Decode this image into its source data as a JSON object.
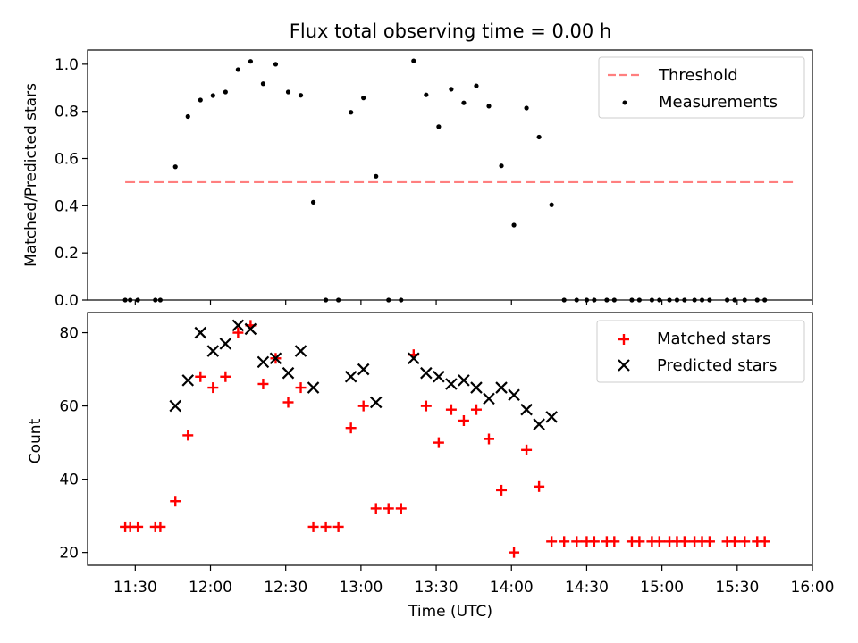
{
  "colors": {
    "threshold": "#ff7f7f",
    "measurement": "#000000",
    "matched": "#ff0000",
    "predicted": "#000000",
    "axes": "#000000"
  },
  "chart_data": [
    {
      "type": "scatter",
      "title": "Flux total observing time = 0.00 h",
      "xlabel": "",
      "ylabel": "Matched/Predicted stars",
      "ylim": [
        0,
        1.06
      ],
      "yticks": [
        0.0,
        0.2,
        0.4,
        0.6,
        0.8,
        1.0
      ],
      "ytick_labels": [
        "0.0",
        "0.2",
        "0.4",
        "0.6",
        "0.8",
        "1.0"
      ],
      "legend": {
        "placement": "top-right",
        "entries": [
          "Threshold",
          "Measurements"
        ]
      },
      "threshold": {
        "name": "Threshold",
        "y": 0.5,
        "x_range": [
          "11:26",
          "15:53"
        ],
        "style": "dashed"
      },
      "series": [
        {
          "name": "Measurements",
          "x": [
            "11:26",
            "11:28",
            "11:31",
            "11:38",
            "11:40",
            "11:46",
            "11:51",
            "11:56",
            "12:01",
            "12:06",
            "12:11",
            "12:16",
            "12:21",
            "12:26",
            "12:31",
            "12:36",
            "12:41",
            "12:46",
            "12:51",
            "12:56",
            "13:01",
            "13:06",
            "13:11",
            "13:16",
            "13:21",
            "13:26",
            "13:31",
            "13:36",
            "13:41",
            "13:46",
            "13:51",
            "13:56",
            "14:01",
            "14:06",
            "14:11",
            "14:16",
            "14:21",
            "14:26",
            "14:30",
            "14:33",
            "14:38",
            "14:41",
            "14:48",
            "14:51",
            "14:56",
            "14:59",
            "15:03",
            "15:06",
            "15:09",
            "15:13",
            "15:16",
            "15:19",
            "15:26",
            "15:29",
            "15:33",
            "15:38",
            "15:41"
          ],
          "values": [
            0,
            0,
            0,
            0,
            0,
            0.565,
            0.778,
            0.848,
            0.867,
            0.882,
            0.977,
            1.012,
            0.917,
            1.0,
            0.882,
            0.868,
            0.415,
            0,
            0,
            0.796,
            0.857,
            0.525,
            0,
            0,
            1.014,
            0.87,
            0.735,
            0.894,
            0.836,
            0.908,
            0.822,
            0.569,
            0.318,
            0.814,
            0.691,
            0.404,
            0,
            0,
            0,
            0,
            0,
            0,
            0,
            0,
            0,
            0,
            0,
            0,
            0,
            0,
            0,
            0,
            0,
            0,
            0,
            0,
            0
          ]
        }
      ]
    },
    {
      "type": "scatter",
      "title": "",
      "xlabel": "Time (UTC)",
      "ylabel": "Count",
      "ylim": [
        16.5,
        85.5
      ],
      "yticks": [
        20,
        40,
        60,
        80
      ],
      "ytick_labels": [
        "20",
        "40",
        "60",
        "80"
      ],
      "xlim": [
        "11:11",
        "16:00"
      ],
      "xticks": [
        "11:30",
        "12:00",
        "12:30",
        "13:00",
        "13:30",
        "14:00",
        "14:30",
        "15:00",
        "15:30",
        "16:00"
      ],
      "legend": {
        "placement": "top-right",
        "entries": [
          "Matched stars",
          "Predicted stars"
        ]
      },
      "series": [
        {
          "name": "Matched stars",
          "marker": "plus",
          "x": [
            "11:26",
            "11:28",
            "11:31",
            "11:38",
            "11:40",
            "11:46",
            "11:51",
            "11:56",
            "12:01",
            "12:06",
            "12:11",
            "12:16",
            "12:21",
            "12:26",
            "12:31",
            "12:36",
            "12:41",
            "12:46",
            "12:51",
            "12:56",
            "13:01",
            "13:06",
            "13:11",
            "13:16",
            "13:21",
            "13:26",
            "13:31",
            "13:36",
            "13:41",
            "13:46",
            "13:51",
            "13:56",
            "14:01",
            "14:06",
            "14:11",
            "14:16",
            "14:21",
            "14:26",
            "14:30",
            "14:33",
            "14:38",
            "14:41",
            "14:48",
            "14:51",
            "14:56",
            "14:59",
            "15:03",
            "15:06",
            "15:09",
            "15:13",
            "15:16",
            "15:19",
            "15:26",
            "15:29",
            "15:33",
            "15:38",
            "15:41"
          ],
          "values": [
            27,
            27,
            27,
            27,
            27,
            34,
            52,
            68,
            65,
            68,
            80,
            82,
            66,
            73,
            61,
            65,
            27,
            27,
            27,
            54,
            60,
            32,
            32,
            32,
            74,
            60,
            50,
            59,
            56,
            59,
            51,
            37,
            20,
            48,
            38,
            23,
            23,
            23,
            23,
            23,
            23,
            23,
            23,
            23,
            23,
            23,
            23,
            23,
            23,
            23,
            23,
            23,
            23,
            23,
            23,
            23,
            23
          ]
        },
        {
          "name": "Predicted stars",
          "marker": "x",
          "x": [
            "11:46",
            "11:51",
            "11:56",
            "12:01",
            "12:06",
            "12:11",
            "12:16",
            "12:21",
            "12:26",
            "12:31",
            "12:36",
            "12:41",
            "12:56",
            "13:01",
            "13:06",
            "13:21",
            "13:26",
            "13:31",
            "13:36",
            "13:41",
            "13:46",
            "13:51",
            "13:56",
            "14:01",
            "14:06",
            "14:11",
            "14:16"
          ],
          "values": [
            60,
            67,
            80,
            75,
            77,
            82,
            81,
            72,
            73,
            69,
            75,
            65,
            68,
            70,
            61,
            73,
            69,
            68,
            66,
            67,
            65,
            62,
            65,
            63,
            59,
            55,
            57
          ]
        }
      ]
    }
  ]
}
